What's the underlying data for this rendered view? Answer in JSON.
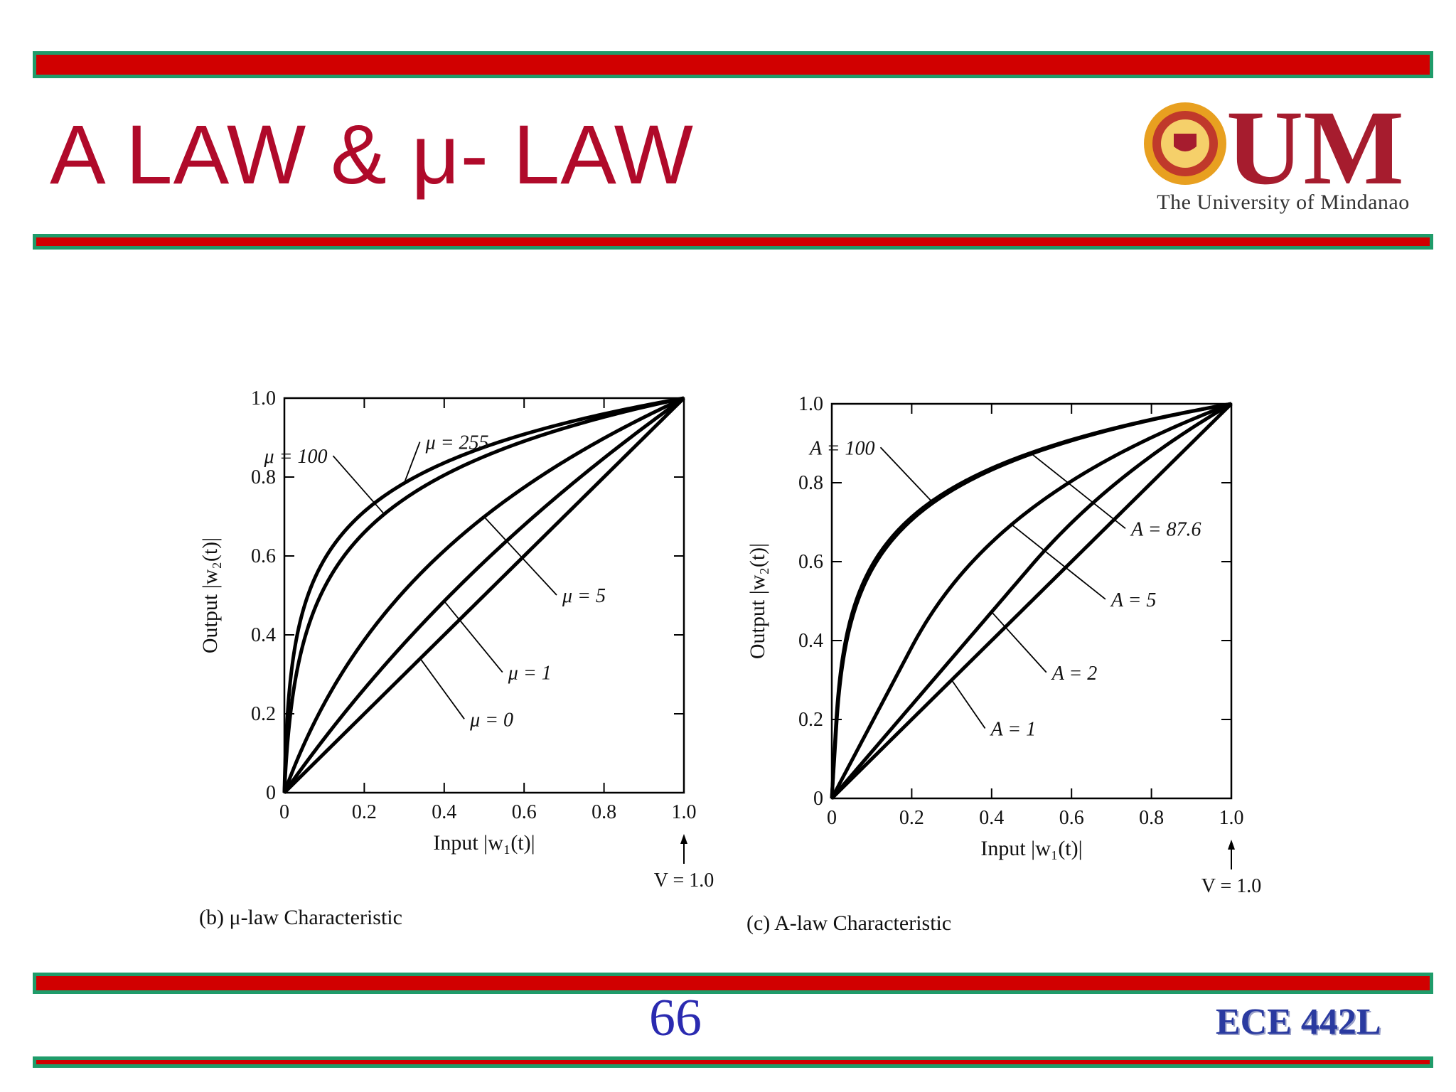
{
  "slide": {
    "title": "A LAW & μ- LAW",
    "logo_text": "UM",
    "logo_caption": "The University of Mindanao",
    "page_number": "66",
    "course_code": "ECE 442L"
  },
  "colors": {
    "title": "#b00a2a",
    "rule_fill": "#d10000",
    "rule_border": "#1f9c6a",
    "logo": "#a61c2e",
    "logo_seal": "#e8a020",
    "page_number": "#2a2ab0",
    "course_code": "#2a3aa0",
    "curve": "#000000"
  },
  "chart_data": [
    {
      "type": "line",
      "caption": "(b) μ-law Characteristic",
      "xlabel": "Input |w₁(t)|",
      "ylabel": "Output |w₂(t)|",
      "xlim": [
        0,
        1
      ],
      "ylim": [
        0,
        1
      ],
      "xticks": [
        "0",
        "0.2",
        "0.4",
        "0.6",
        "0.8",
        "1.0"
      ],
      "yticks": [
        "0",
        "0.2",
        "0.4",
        "0.6",
        "0.8",
        "1.0"
      ],
      "x_end_note": "V = 1.0",
      "law": "mu",
      "grid": false,
      "series": [
        {
          "name": "μ = 255",
          "param": 255
        },
        {
          "name": "μ = 100",
          "param": 100
        },
        {
          "name": "μ = 5",
          "param": 5
        },
        {
          "name": "μ = 1",
          "param": 1
        },
        {
          "name": "μ = 0",
          "param": 0
        }
      ]
    },
    {
      "type": "line",
      "caption": "(c) A-law Characteristic",
      "xlabel": "Input |w₁(t)|",
      "ylabel": "Output |w₂(t)|",
      "xlim": [
        0,
        1
      ],
      "ylim": [
        0,
        1
      ],
      "xticks": [
        "0",
        "0.2",
        "0.4",
        "0.6",
        "0.8",
        "1.0"
      ],
      "yticks": [
        "0",
        "0.2",
        "0.4",
        "0.6",
        "0.8",
        "1.0"
      ],
      "x_end_note": "V = 1.0",
      "law": "A",
      "grid": false,
      "series": [
        {
          "name": "A = 100",
          "param": 100
        },
        {
          "name": "A = 87.6",
          "param": 87.6
        },
        {
          "name": "A = 5",
          "param": 5
        },
        {
          "name": "A = 2",
          "param": 2
        },
        {
          "name": "A = 1",
          "param": 1
        }
      ]
    }
  ]
}
